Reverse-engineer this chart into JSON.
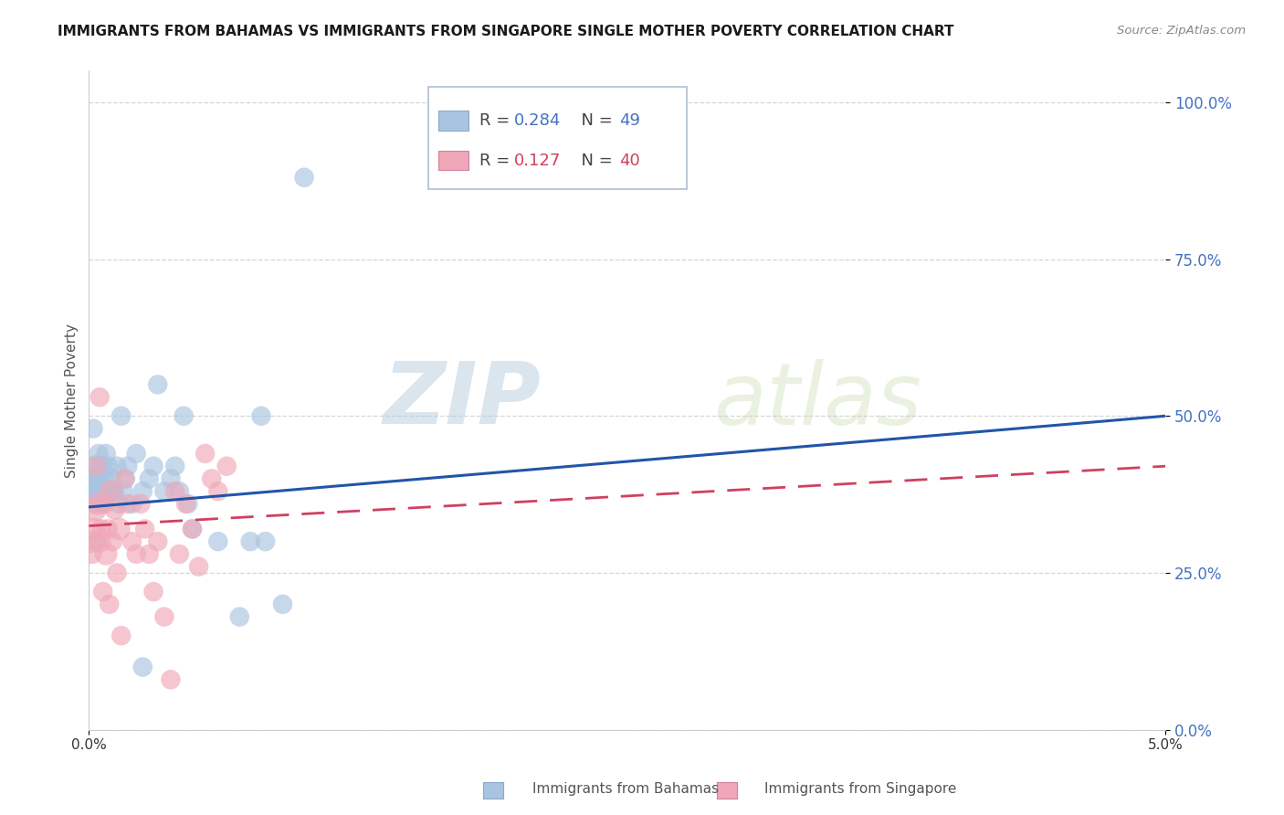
{
  "title": "IMMIGRANTS FROM BAHAMAS VS IMMIGRANTS FROM SINGAPORE SINGLE MOTHER POVERTY CORRELATION CHART",
  "source": "Source: ZipAtlas.com",
  "ylabel": "Single Mother Poverty",
  "ytick_labels": [
    "0.0%",
    "25.0%",
    "50.0%",
    "75.0%",
    "100.0%"
  ],
  "ytick_values": [
    0.0,
    0.25,
    0.5,
    0.75,
    1.0
  ],
  "xlim": [
    0.0,
    0.05
  ],
  "ylim": [
    0.0,
    1.05
  ],
  "legend_r1_label": "R = ",
  "legend_r1_val": "0.284",
  "legend_n1_label": "  N = ",
  "legend_n1_val": "49",
  "legend_r2_label": "R = ",
  "legend_r2_val": "0.127",
  "legend_n2_label": "  N = ",
  "legend_n2_val": "40",
  "label1": "Immigrants from Bahamas",
  "label2": "Immigrants from Singapore",
  "color1": "#a8c4e0",
  "color1_line": "#2255aa",
  "color2": "#f0a8b8",
  "color2_line": "#d04060",
  "watermark_zip": "ZIP",
  "watermark_atlas": "atlas",
  "blue_line_x": [
    0.0,
    0.05
  ],
  "blue_line_y": [
    0.355,
    0.5
  ],
  "pink_line_x": [
    0.0,
    0.05
  ],
  "pink_line_y": [
    0.325,
    0.42
  ],
  "blue_scatter_x": [
    5e-05,
    0.0001,
    0.00015,
    0.0002,
    0.00025,
    0.0003,
    0.00035,
    0.0004,
    0.00045,
    0.0005,
    0.00055,
    0.0006,
    0.00065,
    0.0007,
    0.00075,
    0.0008,
    0.0009,
    0.001,
    0.0011,
    0.0012,
    0.0013,
    0.0014,
    0.0015,
    0.0016,
    0.0017,
    0.0018,
    0.002,
    0.0022,
    0.0025,
    0.0028,
    0.003,
    0.0032,
    0.0035,
    0.0002,
    0.0038,
    0.004,
    0.0042,
    0.0044,
    0.00035,
    0.0046,
    0.0048,
    0.0025,
    0.006,
    0.007,
    0.0075,
    0.008,
    0.0082,
    0.009,
    0.01
  ],
  "blue_scatter_y": [
    0.38,
    0.4,
    0.42,
    0.38,
    0.36,
    0.4,
    0.42,
    0.38,
    0.44,
    0.38,
    0.4,
    0.42,
    0.38,
    0.36,
    0.4,
    0.44,
    0.42,
    0.38,
    0.4,
    0.38,
    0.42,
    0.36,
    0.5,
    0.38,
    0.4,
    0.42,
    0.36,
    0.44,
    0.38,
    0.4,
    0.42,
    0.55,
    0.38,
    0.48,
    0.4,
    0.42,
    0.38,
    0.5,
    0.3,
    0.36,
    0.32,
    0.1,
    0.3,
    0.18,
    0.3,
    0.5,
    0.3,
    0.2,
    0.88
  ],
  "blue_scatter_size": [
    200,
    80,
    60,
    80,
    60,
    80,
    80,
    100,
    60,
    80,
    60,
    60,
    80,
    60,
    60,
    60,
    60,
    80,
    60,
    60,
    60,
    60,
    60,
    60,
    60,
    60,
    60,
    60,
    60,
    60,
    60,
    60,
    60,
    60,
    60,
    60,
    60,
    60,
    60,
    60,
    60,
    60,
    60,
    60,
    60,
    60,
    60,
    60,
    60
  ],
  "pink_scatter_x": [
    8e-05,
    0.00015,
    0.00022,
    0.00028,
    0.00035,
    0.00042,
    0.0005,
    0.00058,
    0.00065,
    0.00072,
    0.0008,
    0.00088,
    0.00095,
    0.00102,
    0.0011,
    0.0012,
    0.0013,
    0.0014,
    0.0015,
    0.00165,
    0.0018,
    0.002,
    0.0022,
    0.0024,
    0.0026,
    0.0028,
    0.003,
    0.0032,
    0.0035,
    0.0038,
    0.004,
    0.0042,
    0.0045,
    0.0048,
    0.0005,
    0.0051,
    0.0054,
    0.0057,
    0.006,
    0.0064
  ],
  "pink_scatter_y": [
    0.3,
    0.28,
    0.32,
    0.35,
    0.42,
    0.36,
    0.3,
    0.32,
    0.22,
    0.36,
    0.28,
    0.32,
    0.2,
    0.38,
    0.3,
    0.35,
    0.25,
    0.32,
    0.15,
    0.4,
    0.36,
    0.3,
    0.28,
    0.36,
    0.32,
    0.28,
    0.22,
    0.3,
    0.18,
    0.08,
    0.38,
    0.28,
    0.36,
    0.32,
    0.53,
    0.26,
    0.44,
    0.4,
    0.38,
    0.42
  ],
  "pink_scatter_size": [
    80,
    60,
    80,
    80,
    60,
    80,
    80,
    60,
    60,
    60,
    80,
    60,
    60,
    80,
    60,
    60,
    60,
    80,
    60,
    60,
    60,
    60,
    60,
    60,
    60,
    60,
    60,
    60,
    60,
    60,
    60,
    60,
    60,
    60,
    60,
    60,
    60,
    60,
    60,
    60
  ]
}
